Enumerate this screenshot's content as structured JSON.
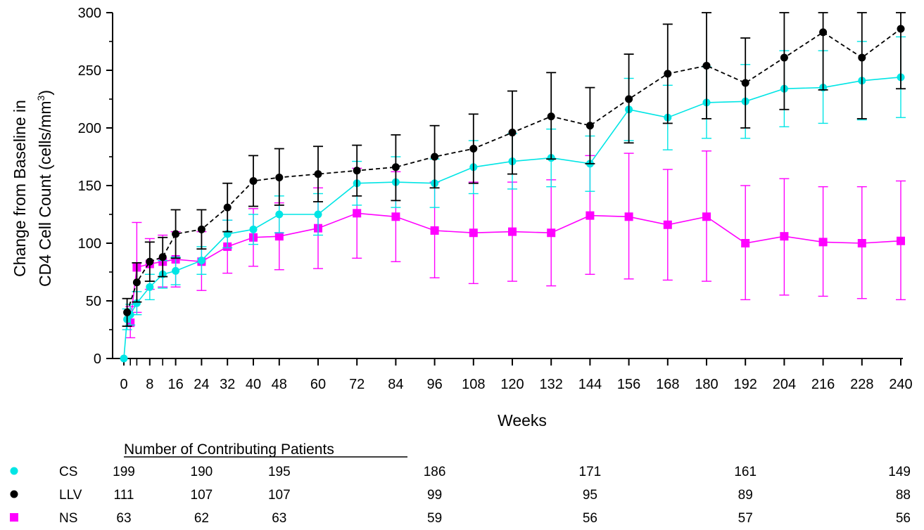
{
  "chart_data": {
    "type": "line",
    "title": "",
    "xlabel": "Weeks",
    "ylabel_line1": "Change from Baseline in",
    "ylabel_line2": "CD4 Cell Count (cells/mm",
    "ylabel_sup": "3",
    "ylabel_close": ")",
    "xlim": [
      -2,
      241
    ],
    "ylim": [
      0,
      300
    ],
    "x_ticks": [
      0,
      8,
      16,
      24,
      32,
      40,
      48,
      60,
      72,
      84,
      96,
      108,
      120,
      132,
      144,
      156,
      168,
      180,
      192,
      204,
      216,
      228,
      240
    ],
    "x_minor_ticks": [
      2,
      4,
      12
    ],
    "y_ticks": [
      0,
      50,
      100,
      150,
      200,
      250,
      300
    ],
    "series": [
      {
        "name": "CS",
        "color": "#00e5e5",
        "marker": "circle",
        "line_style": "solid",
        "points": [
          {
            "x": 0,
            "y": 0
          },
          {
            "x": 1,
            "y": 34,
            "lo": 25,
            "hi": 43
          },
          {
            "x": 2,
            "y": 38,
            "lo": 29,
            "hi": 47
          },
          {
            "x": 4,
            "y": 48,
            "lo": 38,
            "hi": 58
          },
          {
            "x": 8,
            "y": 62,
            "lo": 51,
            "hi": 73
          },
          {
            "x": 12,
            "y": 73,
            "lo": 61,
            "hi": 85
          },
          {
            "x": 16,
            "y": 76,
            "lo": 64,
            "hi": 88
          },
          {
            "x": 24,
            "y": 85,
            "lo": 73,
            "hi": 97
          },
          {
            "x": 32,
            "y": 108,
            "lo": 96,
            "hi": 120
          },
          {
            "x": 40,
            "y": 112,
            "lo": 99,
            "hi": 125
          },
          {
            "x": 48,
            "y": 125,
            "lo": 109,
            "hi": 141
          },
          {
            "x": 60,
            "y": 125,
            "lo": 107,
            "hi": 143
          },
          {
            "x": 72,
            "y": 152,
            "lo": 133,
            "hi": 171
          },
          {
            "x": 84,
            "y": 153,
            "lo": 131,
            "hi": 175
          },
          {
            "x": 96,
            "y": 152,
            "lo": 131,
            "hi": 173
          },
          {
            "x": 108,
            "y": 166,
            "lo": 143,
            "hi": 189
          },
          {
            "x": 120,
            "y": 171,
            "lo": 147,
            "hi": 195
          },
          {
            "x": 132,
            "y": 174,
            "lo": 149,
            "hi": 199
          },
          {
            "x": 144,
            "y": 169,
            "lo": 145,
            "hi": 193
          },
          {
            "x": 156,
            "y": 216,
            "lo": 189,
            "hi": 243
          },
          {
            "x": 168,
            "y": 209,
            "lo": 181,
            "hi": 237
          },
          {
            "x": 180,
            "y": 222,
            "lo": 191,
            "hi": 253
          },
          {
            "x": 192,
            "y": 223,
            "lo": 191,
            "hi": 255
          },
          {
            "x": 204,
            "y": 234,
            "lo": 201,
            "hi": 267
          },
          {
            "x": 216,
            "y": 235,
            "lo": 204,
            "hi": 267
          },
          {
            "x": 228,
            "y": 241,
            "lo": 207,
            "hi": 275
          },
          {
            "x": 240,
            "y": 244,
            "lo": 209,
            "hi": 279
          }
        ]
      },
      {
        "name": "LLV",
        "color": "#000000",
        "marker": "circle",
        "line_style": "dashed",
        "points": [
          {
            "x": 1,
            "y": 40,
            "lo": 28,
            "hi": 52
          },
          {
            "x": 4,
            "y": 66,
            "lo": 49,
            "hi": 83
          },
          {
            "x": 8,
            "y": 84,
            "lo": 67,
            "hi": 101
          },
          {
            "x": 12,
            "y": 88,
            "lo": 71,
            "hi": 105
          },
          {
            "x": 16,
            "y": 108,
            "lo": 87,
            "hi": 129
          },
          {
            "x": 24,
            "y": 112,
            "lo": 95,
            "hi": 129
          },
          {
            "x": 32,
            "y": 131,
            "lo": 110,
            "hi": 152
          },
          {
            "x": 40,
            "y": 154,
            "lo": 132,
            "hi": 176
          },
          {
            "x": 48,
            "y": 157,
            "lo": 133,
            "hi": 182
          },
          {
            "x": 60,
            "y": 160,
            "lo": 136,
            "hi": 184
          },
          {
            "x": 72,
            "y": 163,
            "lo": 141,
            "hi": 185
          },
          {
            "x": 84,
            "y": 166,
            "lo": 137,
            "hi": 194
          },
          {
            "x": 96,
            "y": 175,
            "lo": 148,
            "hi": 202
          },
          {
            "x": 108,
            "y": 182,
            "lo": 152,
            "hi": 212
          },
          {
            "x": 120,
            "y": 196,
            "lo": 160,
            "hi": 232
          },
          {
            "x": 132,
            "y": 210,
            "lo": 173,
            "hi": 248
          },
          {
            "x": 144,
            "y": 202,
            "lo": 169,
            "hi": 235
          },
          {
            "x": 156,
            "y": 225,
            "lo": 187,
            "hi": 264
          },
          {
            "x": 168,
            "y": 247,
            "lo": 204,
            "hi": 290
          },
          {
            "x": 180,
            "y": 254,
            "lo": 208,
            "hi": 300
          },
          {
            "x": 192,
            "y": 239,
            "lo": 200,
            "hi": 278
          },
          {
            "x": 204,
            "y": 261,
            "lo": 216,
            "hi": 300
          },
          {
            "x": 216,
            "y": 283,
            "lo": 233,
            "hi": 300
          },
          {
            "x": 228,
            "y": 261,
            "lo": 208,
            "hi": 300
          },
          {
            "x": 240,
            "y": 286,
            "lo": 234,
            "hi": 300
          }
        ]
      },
      {
        "name": "NS",
        "color": "#ff00ff",
        "marker": "square",
        "line_style": "solid",
        "points": [
          {
            "x": 2,
            "y": 31,
            "lo": 18,
            "hi": 45
          },
          {
            "x": 4,
            "y": 79,
            "lo": 40,
            "hi": 118
          },
          {
            "x": 8,
            "y": 82,
            "lo": 60,
            "hi": 104
          },
          {
            "x": 12,
            "y": 84,
            "lo": 62,
            "hi": 107
          },
          {
            "x": 16,
            "y": 86,
            "lo": 62,
            "hi": 110
          },
          {
            "x": 24,
            "y": 84,
            "lo": 59,
            "hi": 110
          },
          {
            "x": 32,
            "y": 97,
            "lo": 74,
            "hi": 120
          },
          {
            "x": 40,
            "y": 105,
            "lo": 80,
            "hi": 130
          },
          {
            "x": 48,
            "y": 106,
            "lo": 77,
            "hi": 135
          },
          {
            "x": 60,
            "y": 113,
            "lo": 78,
            "hi": 148
          },
          {
            "x": 72,
            "y": 126,
            "lo": 87,
            "hi": 165
          },
          {
            "x": 84,
            "y": 123,
            "lo": 84,
            "hi": 162
          },
          {
            "x": 96,
            "y": 111,
            "lo": 70,
            "hi": 153
          },
          {
            "x": 108,
            "y": 109,
            "lo": 65,
            "hi": 153
          },
          {
            "x": 120,
            "y": 110,
            "lo": 67,
            "hi": 153
          },
          {
            "x": 132,
            "y": 109,
            "lo": 63,
            "hi": 155
          },
          {
            "x": 144,
            "y": 124,
            "lo": 73,
            "hi": 176
          },
          {
            "x": 156,
            "y": 123,
            "lo": 69,
            "hi": 178
          },
          {
            "x": 168,
            "y": 116,
            "lo": 68,
            "hi": 164
          },
          {
            "x": 180,
            "y": 123,
            "lo": 67,
            "hi": 180
          },
          {
            "x": 192,
            "y": 100,
            "lo": 51,
            "hi": 150
          },
          {
            "x": 204,
            "y": 106,
            "lo": 55,
            "hi": 156
          },
          {
            "x": 216,
            "y": 101,
            "lo": 54,
            "hi": 149
          },
          {
            "x": 228,
            "y": 100,
            "lo": 52,
            "hi": 149
          },
          {
            "x": 240,
            "y": 102,
            "lo": 51,
            "hi": 154
          }
        ]
      }
    ]
  },
  "patient_table": {
    "title": "Number of Contributing Patients",
    "columns_x": [
      0,
      24,
      48,
      96,
      144,
      192,
      240
    ],
    "rows": [
      {
        "label": "CS",
        "marker": "circle",
        "color": "#00e5e5",
        "counts": [
          "199",
          "190",
          "195",
          "186",
          "171",
          "161",
          "149"
        ]
      },
      {
        "label": "LLV",
        "marker": "circle",
        "color": "#000000",
        "counts": [
          "111",
          "107",
          "107",
          "99",
          "95",
          "89",
          "88"
        ]
      },
      {
        "label": "NS",
        "marker": "square",
        "color": "#ff00ff",
        "counts": [
          "63",
          "62",
          "63",
          "59",
          "56",
          "57",
          "56"
        ]
      }
    ]
  }
}
